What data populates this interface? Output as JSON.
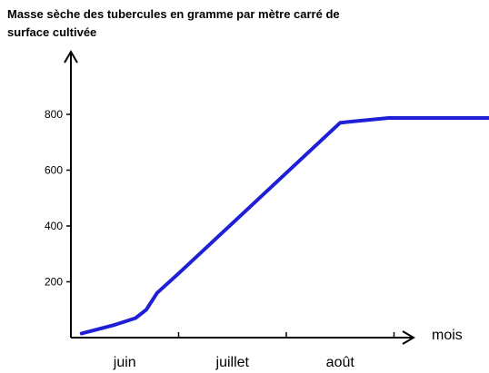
{
  "chart_data": {
    "type": "line",
    "title": "Masse sèche des tubercules en gramme par mètre carré de surface cultivée",
    "xlabel": "mois",
    "ylabel": "",
    "categories": [
      "juin",
      "juillet",
      "août"
    ],
    "xlim": [
      0,
      4
    ],
    "ylim": [
      0,
      900
    ],
    "yticks": [
      200,
      400,
      600,
      800
    ],
    "grid": false,
    "series": [
      {
        "color": "#1f1fd6",
        "x": [
          0.1,
          0.4,
          0.6,
          0.7,
          0.75,
          0.8,
          1.0,
          1.5,
          2.0,
          2.5,
          2.95,
          3.5,
          4.0
        ],
        "y": [
          15,
          45,
          70,
          100,
          130,
          160,
          230,
          410,
          590,
          770,
          787,
          787,
          787
        ]
      }
    ]
  }
}
